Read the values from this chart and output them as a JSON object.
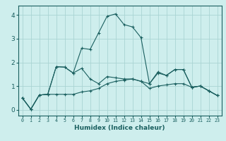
{
  "xlabel": "Humidex (Indice chaleur)",
  "xlim": [
    -0.5,
    23.5
  ],
  "ylim": [
    -0.25,
    4.4
  ],
  "yticks": [
    0,
    1,
    2,
    3,
    4
  ],
  "xticks": [
    0,
    1,
    2,
    3,
    4,
    5,
    6,
    7,
    8,
    9,
    10,
    11,
    12,
    13,
    14,
    15,
    16,
    17,
    18,
    19,
    20,
    21,
    22,
    23
  ],
  "bg_color": "#ceeeed",
  "line_color": "#1a5f5f",
  "grid_color": "#aad4d3",
  "series": [
    [
      0.5,
      0.02,
      0.62,
      0.65,
      1.82,
      1.8,
      1.55,
      2.6,
      2.55,
      3.25,
      3.95,
      4.05,
      3.6,
      3.5,
      3.05,
      1.1,
      1.6,
      1.45,
      1.7,
      1.7,
      0.95,
      1.0,
      0.8,
      0.6
    ],
    [
      0.5,
      0.02,
      0.62,
      0.65,
      1.82,
      1.8,
      1.55,
      1.75,
      1.3,
      1.1,
      1.4,
      1.35,
      1.3,
      1.3,
      1.2,
      1.1,
      1.55,
      1.45,
      1.7,
      1.7,
      0.95,
      1.0,
      0.8,
      0.6
    ],
    [
      0.5,
      0.02,
      0.62,
      0.65,
      0.65,
      0.65,
      0.65,
      0.75,
      0.8,
      0.9,
      1.1,
      1.2,
      1.25,
      1.3,
      1.2,
      0.9,
      1.0,
      1.05,
      1.1,
      1.1,
      0.95,
      1.0,
      0.8,
      0.6
    ]
  ]
}
